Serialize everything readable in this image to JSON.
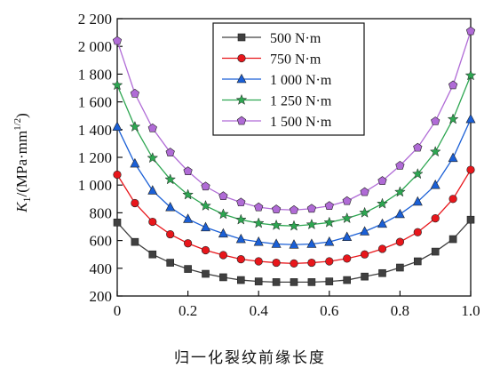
{
  "chart_data": {
    "type": "line",
    "title": "",
    "xlabel": "归一化裂纹前缘长度",
    "ylabel": {
      "main": "K",
      "sub": "1",
      "unit": "/(MPa·mm",
      "exp": "1/2",
      "close": ")"
    },
    "xlim": [
      0,
      1.0
    ],
    "ylim": [
      200,
      2200
    ],
    "x_ticks": [
      0,
      0.2,
      0.4,
      0.6,
      0.8,
      1.0
    ],
    "x_tick_labels": [
      "0",
      "0.2",
      "0.4",
      "0.6",
      "0.8",
      "1.0"
    ],
    "y_ticks": [
      200,
      400,
      600,
      800,
      1000,
      1200,
      1400,
      1600,
      1800,
      2000,
      2200
    ],
    "y_tick_labels": [
      "200",
      "400",
      "600",
      "800",
      "1 000",
      "1 200",
      "1 400",
      "1 600",
      "1 800",
      "2 000",
      "2 200"
    ],
    "legend_position": "top-center",
    "grid": false,
    "x": [
      0,
      0.05,
      0.1,
      0.15,
      0.2,
      0.25,
      0.3,
      0.35,
      0.4,
      0.45,
      0.5,
      0.55,
      0.6,
      0.65,
      0.7,
      0.75,
      0.8,
      0.85,
      0.9,
      0.95,
      1.0
    ],
    "series": [
      {
        "name": "500 N·m",
        "color": "#404040",
        "marker": "square",
        "values": [
          730,
          590,
          500,
          440,
          395,
          360,
          335,
          315,
          305,
          300,
          300,
          300,
          305,
          315,
          340,
          365,
          405,
          450,
          520,
          610,
          750
        ]
      },
      {
        "name": "750 N·m",
        "color": "#e8161b",
        "marker": "circle",
        "values": [
          1075,
          870,
          735,
          645,
          580,
          530,
          495,
          465,
          450,
          440,
          435,
          440,
          450,
          470,
          500,
          540,
          590,
          660,
          760,
          900,
          1110
        ]
      },
      {
        "name": "1 000 N·m",
        "color": "#1a5fd6",
        "marker": "triangle",
        "values": [
          1420,
          1155,
          960,
          840,
          755,
          695,
          650,
          610,
          590,
          575,
          570,
          575,
          590,
          625,
          665,
          720,
          790,
          880,
          1000,
          1195,
          1475
        ]
      },
      {
        "name": "1 250 N·m",
        "color": "#2da651",
        "marker": "star",
        "values": [
          1720,
          1420,
          1195,
          1040,
          930,
          850,
          790,
          750,
          725,
          710,
          705,
          715,
          730,
          760,
          800,
          865,
          950,
          1080,
          1240,
          1475,
          1790
        ]
      },
      {
        "name": "1 500 N·m",
        "color": "#b06bd6",
        "marker": "pentagon",
        "values": [
          2040,
          1660,
          1410,
          1235,
          1100,
          990,
          920,
          875,
          840,
          825,
          820,
          830,
          850,
          885,
          950,
          1030,
          1140,
          1270,
          1460,
          1720,
          2110
        ]
      }
    ]
  }
}
